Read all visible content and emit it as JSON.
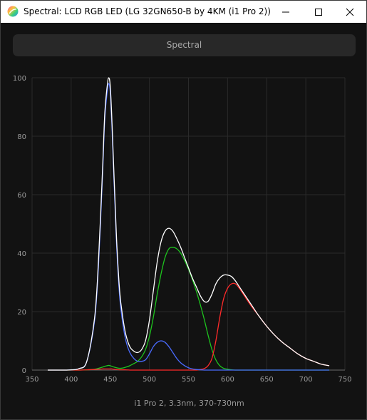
{
  "window": {
    "title": "Spectral: LCD RGB LED (LG 32GN650-B by 4KM (i1 Pro 2))",
    "icon": "spectral-app-icon",
    "controls": [
      "minimize-icon",
      "maximize-icon",
      "close-icon"
    ]
  },
  "header": {
    "button_label": "Spectral"
  },
  "chart_data": {
    "type": "line",
    "xlabel": "i1 Pro 2, 3.3nm, 370-730nm",
    "ylabel": "",
    "xlim": [
      350,
      750
    ],
    "ylim": [
      0,
      100
    ],
    "x_ticks": [
      "350",
      "400",
      "450",
      "500",
      "550",
      "600",
      "650",
      "700",
      "750"
    ],
    "y_ticks": [
      "0",
      "20",
      "40",
      "60",
      "80",
      "100"
    ],
    "grid": true,
    "x": [
      370,
      380,
      390,
      400,
      410,
      420,
      430,
      435,
      440,
      443,
      446,
      448,
      450,
      452,
      455,
      458,
      462,
      466,
      470,
      475,
      480,
      485,
      490,
      495,
      500,
      505,
      510,
      515,
      520,
      525,
      530,
      535,
      540,
      545,
      550,
      555,
      560,
      565,
      570,
      575,
      580,
      585,
      590,
      595,
      600,
      605,
      610,
      615,
      620,
      630,
      640,
      650,
      660,
      670,
      680,
      690,
      700,
      710,
      720,
      730
    ],
    "series": [
      {
        "color": "#ffffff",
        "values": [
          0,
          0,
          0,
          0.1,
          0.5,
          3,
          18,
          38,
          68,
          88,
          97,
          100,
          97,
          86,
          65,
          45,
          27,
          18,
          12,
          8,
          6.5,
          6,
          7,
          10,
          17,
          27,
          37,
          44,
          47.5,
          48.5,
          47.5,
          45,
          42,
          38.5,
          35,
          31.5,
          28.5,
          25.5,
          23.5,
          23.5,
          26,
          29.5,
          31.5,
          32.5,
          32.5,
          32,
          30.5,
          28.5,
          26.5,
          22.5,
          18.5,
          15,
          12,
          9.5,
          7.5,
          5.5,
          4,
          3,
          2,
          1.5
        ]
      },
      {
        "color": "#4a6bff",
        "values": [
          0,
          0,
          0,
          0.1,
          0.5,
          3,
          17,
          36,
          66,
          86,
          95,
          98,
          95,
          84,
          63,
          43,
          25,
          16,
          10,
          6,
          4,
          3,
          3,
          3.5,
          5.5,
          8,
          9.5,
          10,
          9.5,
          8,
          6,
          4,
          2.5,
          1.5,
          0.8,
          0.4,
          0.2,
          0.1,
          0,
          0,
          0,
          0,
          0,
          0,
          0,
          0,
          0,
          0,
          0,
          0,
          0,
          0,
          0,
          0,
          0,
          0,
          0,
          0,
          0,
          0
        ]
      },
      {
        "color": "#1ec41e",
        "values": [
          0,
          0,
          0,
          0,
          0,
          0.1,
          0.3,
          0.6,
          1.0,
          1.3,
          1.5,
          1.6,
          1.5,
          1.3,
          1.0,
          0.8,
          0.6,
          0.7,
          1.0,
          1.5,
          2.2,
          3.0,
          4.5,
          7,
          11.5,
          18,
          26,
          33,
          38.5,
          41.5,
          42,
          41.5,
          40,
          37.5,
          34.5,
          31,
          27,
          22.5,
          17.5,
          12,
          7,
          3.5,
          1.5,
          0.6,
          0.3,
          0.1,
          0,
          0,
          0,
          0,
          0,
          0,
          0,
          0,
          0,
          0,
          0,
          0,
          0,
          0
        ]
      },
      {
        "color": "#ff2a2a",
        "values": [
          0,
          0,
          0,
          0,
          0,
          0.1,
          0.2,
          0.3,
          0.4,
          0.4,
          0.4,
          0.4,
          0.4,
          0.4,
          0.3,
          0.2,
          0.1,
          0.1,
          0.1,
          0,
          0,
          0,
          0,
          0,
          0,
          0,
          0,
          0,
          0,
          0,
          0,
          0,
          0,
          0,
          0,
          0,
          0,
          0.2,
          0.5,
          1.5,
          4,
          10,
          18,
          24.5,
          28,
          29.5,
          29.5,
          28,
          26,
          22,
          18.5,
          15,
          12,
          9.5,
          7.5,
          5.5,
          4,
          3,
          2,
          1.5
        ]
      }
    ]
  }
}
